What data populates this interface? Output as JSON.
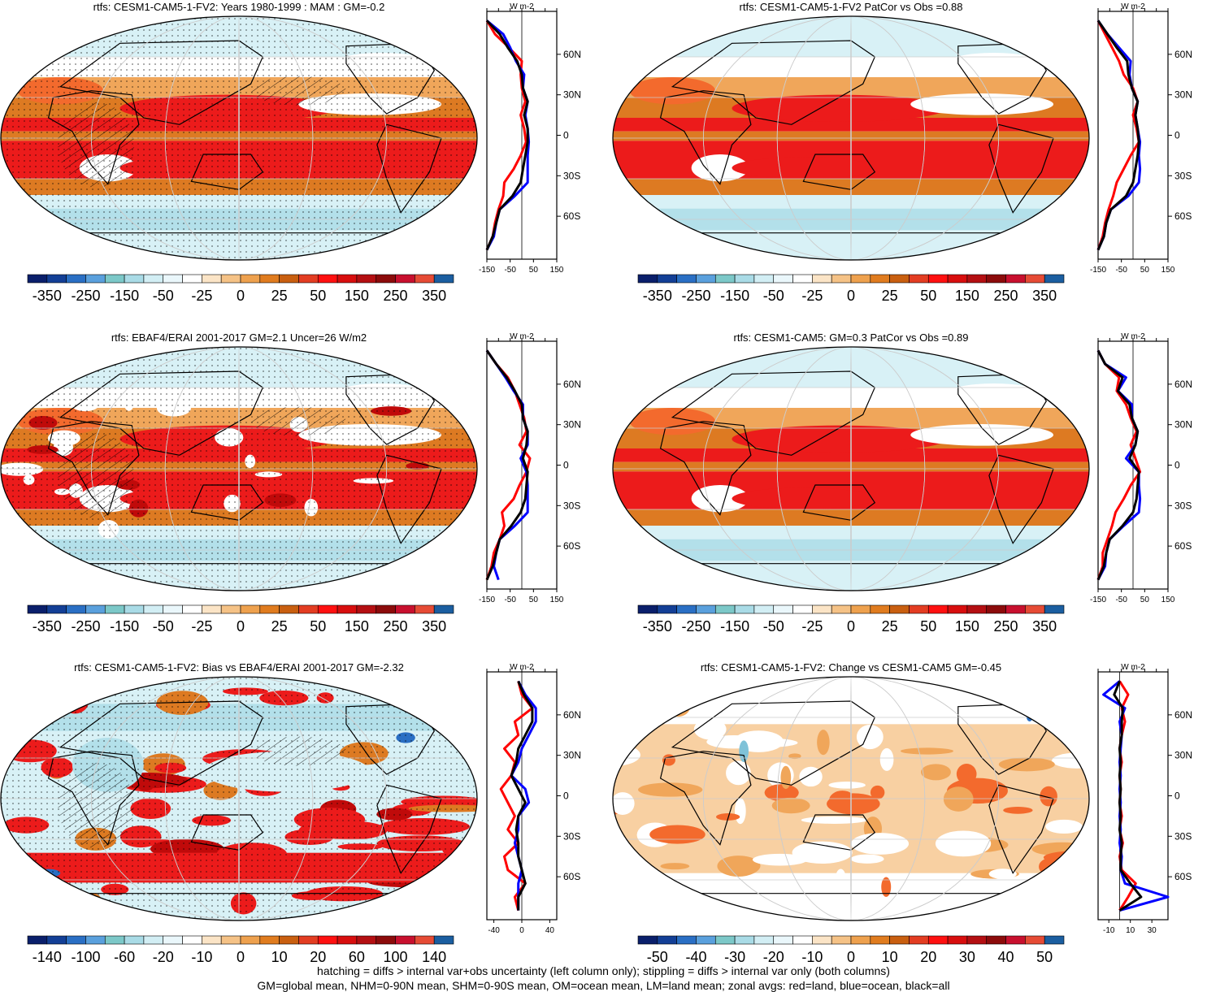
{
  "colors": {
    "map_outline": "#000000",
    "land": "red",
    "ocean": "blue",
    "all": "black",
    "grid": "#cccccc"
  },
  "scales": {
    "main": {
      "labels": [
        "-350",
        "-250",
        "-150",
        "-50",
        "-25",
        "0",
        "25",
        "50",
        "150",
        "250",
        "350"
      ],
      "colors": [
        "#0a1f6b",
        "#133f96",
        "#2a6fc4",
        "#5aa0dd",
        "#7cc8c8",
        "#a9dbe6",
        "#d2eef4",
        "#eaf7fb",
        "#ffffff",
        "#fbe4c6",
        "#f5c286",
        "#eea14e",
        "#e07c1f",
        "#c95f10",
        "#e33d22",
        "#ff1010",
        "#d80e0e",
        "#b40f12",
        "#8c0b0b",
        "#c8102e",
        "#e64b35",
        "#1b5ea0"
      ]
    },
    "diff140": {
      "labels": [
        "-140",
        "-100",
        "-60",
        "-20",
        "-10",
        "0",
        "10",
        "20",
        "60",
        "100",
        "140"
      ],
      "colors": [
        "#0a1f6b",
        "#133f96",
        "#2a6fc4",
        "#5aa0dd",
        "#7cc8c8",
        "#a9dbe6",
        "#d2eef4",
        "#eaf7fb",
        "#ffffff",
        "#fbe4c6",
        "#f5c286",
        "#eea14e",
        "#e07c1f",
        "#c95f10",
        "#e33d22",
        "#ff1010",
        "#d80e0e",
        "#b40f12",
        "#8c0b0b",
        "#c8102e",
        "#e64b35",
        "#1b5ea0"
      ]
    },
    "diff50": {
      "labels": [
        "-50",
        "-40",
        "-30",
        "-20",
        "-10",
        "0",
        "10",
        "20",
        "30",
        "40",
        "50"
      ],
      "colors": [
        "#0a1f6b",
        "#133f96",
        "#2a6fc4",
        "#5aa0dd",
        "#7cc8c8",
        "#a9dbe6",
        "#d2eef4",
        "#eaf7fb",
        "#ffffff",
        "#fbe4c6",
        "#f5c286",
        "#eea14e",
        "#e07c1f",
        "#c95f10",
        "#e33d22",
        "#ff1010",
        "#d80e0e",
        "#b40f12",
        "#8c0b0b",
        "#c8102e",
        "#e64b35",
        "#1b5ea0"
      ]
    }
  },
  "chart_data": [
    {
      "type": "map",
      "title": "rtfs: CESM1-CAM5-1-FV2: Years 1980-1999 : MAM : GM=-0.2",
      "scale": "main",
      "stipple": true,
      "hatch": true,
      "profile": {
        "units": "W m-2",
        "xticks": [
          "-150",
          "-50",
          "50",
          "150"
        ],
        "xlim": [
          -150,
          150
        ],
        "yticks": [
          "60N",
          "30N",
          "0",
          "30S",
          "60S"
        ],
        "lat": [
          85,
          75,
          65,
          55,
          45,
          35,
          25,
          15,
          5,
          -5,
          -15,
          -25,
          -35,
          -45,
          -55,
          -65,
          -75,
          -85
        ],
        "land": [
          -150,
          -115,
          -55,
          0,
          -5,
          0,
          15,
          -5,
          10,
          18,
          -5,
          -35,
          -75,
          -80,
          -100,
          -115,
          -125,
          -150
        ],
        "ocean": [
          -150,
          -80,
          -50,
          -25,
          10,
          5,
          25,
          15,
          25,
          30,
          25,
          25,
          25,
          -30,
          -95,
          -110,
          -120,
          -150
        ],
        "all": [
          -150,
          -95,
          -60,
          -20,
          0,
          5,
          25,
          10,
          25,
          25,
          15,
          5,
          -5,
          -40,
          -95,
          -110,
          -125,
          -150
        ]
      }
    },
    {
      "type": "map",
      "title": "rtfs: CESM1-CAM5-1-FV2 PatCor vs Obs =0.88",
      "scale": "main",
      "stipple": false,
      "hatch": false,
      "profile": {
        "units": "W m-2",
        "xticks": [
          "-150",
          "-50",
          "50",
          "150"
        ],
        "xlim": [
          -150,
          150
        ],
        "yticks": [
          "60N",
          "30N",
          "0",
          "30S",
          "60S"
        ],
        "lat": [
          85,
          75,
          65,
          55,
          45,
          35,
          25,
          15,
          5,
          -5,
          -15,
          -25,
          -35,
          -45,
          -55,
          -65,
          -75,
          -85
        ],
        "land": [
          -150,
          -120,
          -90,
          -60,
          -40,
          0,
          20,
          0,
          15,
          25,
          -10,
          -40,
          -70,
          -85,
          -105,
          -120,
          -130,
          -150
        ],
        "ocean": [
          -150,
          -110,
          -60,
          -10,
          -15,
          -5,
          20,
          10,
          20,
          30,
          25,
          30,
          25,
          -20,
          -95,
          -115,
          -125,
          -150
        ],
        "all": [
          -150,
          -110,
          -70,
          -25,
          -20,
          -5,
          20,
          10,
          20,
          25,
          20,
          10,
          0,
          -30,
          -95,
          -115,
          -125,
          -150
        ]
      }
    },
    {
      "type": "map",
      "title": "rtfs: EBAF4/ERAI 2001-2017 GM=2.1 Uncer=26 W/m2",
      "scale": "main",
      "stipple": true,
      "hatch": true,
      "profile": {
        "units": "W m-2",
        "xticks": [
          "-150",
          "-50",
          "50",
          "150"
        ],
        "xlim": [
          -150,
          150
        ],
        "yticks": [
          "60N",
          "30N",
          "0",
          "30S",
          "60S"
        ],
        "lat": [
          85,
          75,
          65,
          55,
          45,
          35,
          25,
          15,
          5,
          -5,
          -15,
          -25,
          -35,
          -45,
          -55,
          -65,
          -75,
          -85
        ],
        "land": [
          -150,
          -110,
          -60,
          -30,
          -10,
          10,
          20,
          -10,
          35,
          20,
          -10,
          -35,
          -85,
          -75,
          -95,
          -120,
          -130,
          -150
        ],
        "ocean": [
          -150,
          -110,
          -70,
          -35,
          5,
          5,
          25,
          25,
          -5,
          20,
          25,
          25,
          25,
          -30,
          -95,
          -110,
          -120,
          -100
        ],
        "all": [
          -150,
          -110,
          -65,
          -30,
          0,
          5,
          25,
          20,
          5,
          25,
          20,
          15,
          -5,
          -45,
          -95,
          -110,
          -125,
          -150
        ]
      }
    },
    {
      "type": "map",
      "title": "rtfs: CESM1-CAM5: GM=0.3 PatCor vs Obs =0.89",
      "scale": "main",
      "stipple": false,
      "hatch": false,
      "profile": {
        "units": "W m-2",
        "xticks": [
          "-150",
          "-50",
          "50",
          "150"
        ],
        "xlim": [
          -150,
          150
        ],
        "yticks": [
          "60N",
          "30N",
          "0",
          "30S",
          "60S"
        ],
        "lat": [
          85,
          75,
          65,
          55,
          45,
          35,
          25,
          15,
          5,
          -5,
          -15,
          -25,
          -35,
          -45,
          -55,
          -65,
          -75,
          -85
        ],
        "land": [
          -150,
          -120,
          -60,
          -70,
          -30,
          -10,
          15,
          -10,
          10,
          30,
          -10,
          -40,
          -75,
          -90,
          -110,
          -130,
          -130,
          -150
        ],
        "ocean": [
          -150,
          -120,
          -30,
          -65,
          -5,
          -5,
          20,
          10,
          -30,
          25,
          25,
          30,
          25,
          -40,
          -100,
          -115,
          -120,
          -150
        ],
        "all": [
          -150,
          -120,
          -45,
          -65,
          -15,
          -5,
          20,
          10,
          -15,
          25,
          20,
          15,
          0,
          -45,
          -100,
          -115,
          -125,
          -150
        ]
      }
    },
    {
      "type": "map",
      "title": "rtfs: CESM1-CAM5-1-FV2: Bias vs EBAF4/ERAI 2001-2017 GM=-2.32",
      "scale": "diff140",
      "stipple": true,
      "hatch": true,
      "profile": {
        "units": "W m-2",
        "xticks": [
          "-40",
          "0",
          "40"
        ],
        "xlim": [
          -50,
          50
        ],
        "yticks": [
          "60N",
          "30N",
          "0",
          "30S",
          "60S"
        ],
        "lat": [
          85,
          75,
          65,
          55,
          45,
          35,
          25,
          15,
          5,
          -5,
          -15,
          -25,
          -35,
          -45,
          -55,
          -65,
          -75,
          -85
        ],
        "land": [
          -5,
          0,
          15,
          -10,
          -5,
          -25,
          -10,
          -15,
          -30,
          -20,
          -10,
          -20,
          -5,
          -25,
          -20,
          5,
          -10,
          -5
        ],
        "ocean": [
          -5,
          5,
          20,
          20,
          10,
          0,
          -5,
          -15,
          5,
          10,
          -5,
          -5,
          -10,
          -5,
          0,
          -5,
          -5,
          -5
        ],
        "all": [
          -5,
          3,
          15,
          15,
          5,
          -5,
          -8,
          -15,
          -5,
          5,
          -5,
          -8,
          -5,
          -5,
          0,
          5,
          -5,
          -5
        ]
      }
    },
    {
      "type": "map",
      "title": "rtfs: CESM1-CAM5-1-FV2: Change vs CESM1-CAM5 GM=-0.45",
      "scale": "diff50",
      "stipple": false,
      "hatch": false,
      "profile": {
        "units": "W m-2",
        "xticks": [
          "-10",
          "10",
          "30"
        ],
        "xlim": [
          -20,
          45
        ],
        "yticks": [
          "60N",
          "30N",
          "0",
          "30S",
          "60S"
        ],
        "lat": [
          85,
          75,
          65,
          55,
          45,
          35,
          25,
          15,
          5,
          -5,
          -15,
          -25,
          -35,
          -45,
          -55,
          -65,
          -75,
          -85
        ],
        "land": [
          0,
          8,
          2,
          5,
          2,
          0,
          2,
          0,
          1,
          0,
          2,
          0,
          3,
          0,
          2,
          15,
          8,
          0
        ],
        "ocean": [
          0,
          -15,
          5,
          0,
          2,
          1,
          0,
          1,
          0,
          1,
          0,
          1,
          0,
          2,
          1,
          5,
          45,
          0
        ],
        "all": [
          0,
          -5,
          3,
          2,
          2,
          0,
          1,
          0,
          1,
          0,
          1,
          0,
          2,
          1,
          1,
          10,
          20,
          0
        ]
      }
    }
  ],
  "footer": {
    "line1": "hatching = diffs > internal var+obs uncertainty (left column only); stippling = diffs > internal var only (both columns)",
    "line2": "GM=global mean, NHM=0-90N mean, SHM=0-90S mean, OM=ocean mean, LM=land mean; zonal avgs: red=land, blue=ocean, black=all"
  }
}
